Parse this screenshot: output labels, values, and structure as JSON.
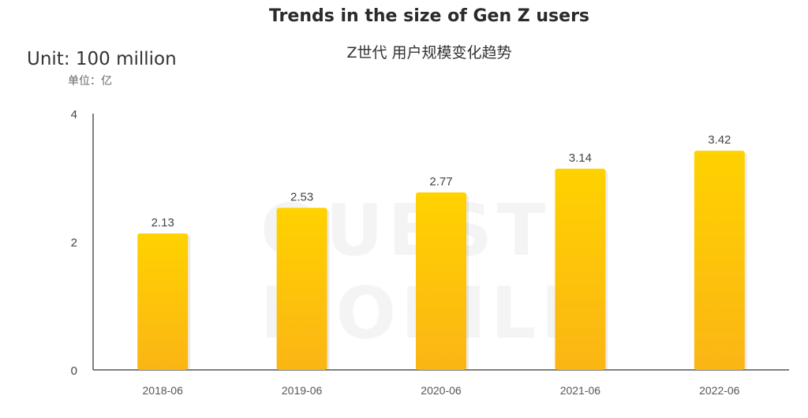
{
  "chart_data": {
    "type": "bar",
    "title": "Trends in the size of Gen Z users",
    "subtitle": "Z世代 用户规模变化趋势",
    "unit_label": "Unit: 100 million",
    "unit_label_zh": "单位：亿",
    "categories": [
      "2018-06",
      "2019-06",
      "2020-06",
      "2021-06",
      "2022-06"
    ],
    "values": [
      2.13,
      2.53,
      2.77,
      3.14,
      3.42
    ],
    "value_labels": [
      "2.13",
      "2.53",
      "2.77",
      "3.14",
      "3.42"
    ],
    "yticks": [
      "0",
      "2",
      "4"
    ],
    "ylim": [
      0,
      4
    ],
    "grid": false,
    "bar_color_top": "#FFD200",
    "bar_color_bottom": "#FBB515",
    "watermark": "QUEST MOBILE"
  }
}
